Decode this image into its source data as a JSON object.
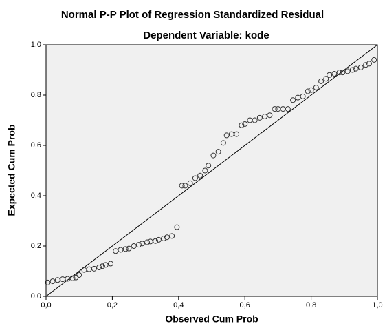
{
  "chart_data": {
    "type": "scatter",
    "title": "Normal P-P Plot of Regression Standardized Residual",
    "subtitle": "Dependent Variable: kode",
    "x_label": "Observed Cum Prob",
    "y_label": "Expected Cum Prob",
    "xlim": [
      0,
      1
    ],
    "ylim": [
      0,
      1
    ],
    "xticks": [
      {
        "value": 0,
        "label": "0,0"
      },
      {
        "value": 0.2,
        "label": "0,2"
      },
      {
        "value": 0.4,
        "label": "0,4"
      },
      {
        "value": 0.6,
        "label": "0,6"
      },
      {
        "value": 0.8,
        "label": "0,8"
      },
      {
        "value": 1,
        "label": "1,0"
      }
    ],
    "yticks": [
      {
        "value": 0,
        "label": "0,0"
      },
      {
        "value": 0.2,
        "label": "0,2"
      },
      {
        "value": 0.4,
        "label": "0,4"
      },
      {
        "value": 0.6,
        "label": "0,6"
      },
      {
        "value": 0.8,
        "label": "0,8"
      },
      {
        "value": 1,
        "label": "1,0"
      }
    ],
    "reference_line": true,
    "color": "#333333",
    "background": "#f0f0f0",
    "x": [
      0.005,
      0.02,
      0.035,
      0.05,
      0.065,
      0.08,
      0.09,
      0.1,
      0.115,
      0.13,
      0.145,
      0.16,
      0.17,
      0.18,
      0.195,
      0.21,
      0.225,
      0.24,
      0.25,
      0.265,
      0.28,
      0.29,
      0.305,
      0.315,
      0.33,
      0.34,
      0.355,
      0.365,
      0.38,
      0.395,
      0.41,
      0.42,
      0.435,
      0.45,
      0.465,
      0.48,
      0.49,
      0.505,
      0.52,
      0.535,
      0.545,
      0.56,
      0.575,
      0.59,
      0.6,
      0.615,
      0.63,
      0.645,
      0.66,
      0.675,
      0.69,
      0.7,
      0.715,
      0.73,
      0.745,
      0.76,
      0.775,
      0.79,
      0.8,
      0.815,
      0.83,
      0.845,
      0.855,
      0.87,
      0.885,
      0.895,
      0.91,
      0.925,
      0.935,
      0.95,
      0.965,
      0.975,
      0.99
    ],
    "values": [
      0.055,
      0.06,
      0.065,
      0.068,
      0.07,
      0.072,
      0.075,
      0.085,
      0.105,
      0.108,
      0.11,
      0.115,
      0.12,
      0.125,
      0.13,
      0.18,
      0.185,
      0.188,
      0.19,
      0.2,
      0.205,
      0.21,
      0.215,
      0.218,
      0.22,
      0.225,
      0.23,
      0.235,
      0.24,
      0.275,
      0.44,
      0.44,
      0.45,
      0.47,
      0.48,
      0.5,
      0.52,
      0.56,
      0.575,
      0.61,
      0.64,
      0.645,
      0.645,
      0.68,
      0.685,
      0.7,
      0.7,
      0.71,
      0.715,
      0.72,
      0.745,
      0.745,
      0.745,
      0.745,
      0.78,
      0.79,
      0.795,
      0.815,
      0.82,
      0.83,
      0.855,
      0.865,
      0.88,
      0.885,
      0.89,
      0.89,
      0.895,
      0.9,
      0.905,
      0.91,
      0.92,
      0.925,
      0.94
    ]
  }
}
